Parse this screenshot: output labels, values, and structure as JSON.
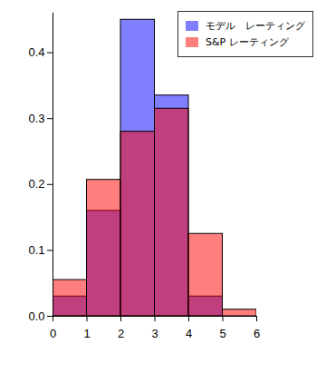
{
  "chart_data": {
    "type": "histogram",
    "bins": [
      0,
      1,
      2,
      3,
      4,
      5,
      6
    ],
    "series": [
      {
        "name": "モデル　レーティング",
        "color": "#0000ff",
        "values": [
          0.03,
          0.16,
          0.45,
          0.335,
          0.03,
          0
        ]
      },
      {
        "name": "S&P レーティング",
        "color": "#ff0000",
        "values": [
          0.055,
          0.207,
          0.28,
          0.315,
          0.125,
          0.01
        ]
      }
    ],
    "xlim": [
      0,
      6
    ],
    "xticks": [
      0,
      1,
      2,
      3,
      4,
      5,
      6
    ],
    "ylim": [
      0,
      0.46
    ],
    "yticks": [
      {
        "value": 0,
        "label": "0.0"
      },
      0.1,
      0.2,
      0.3,
      0.4
    ],
    "legend": "top-right"
  }
}
